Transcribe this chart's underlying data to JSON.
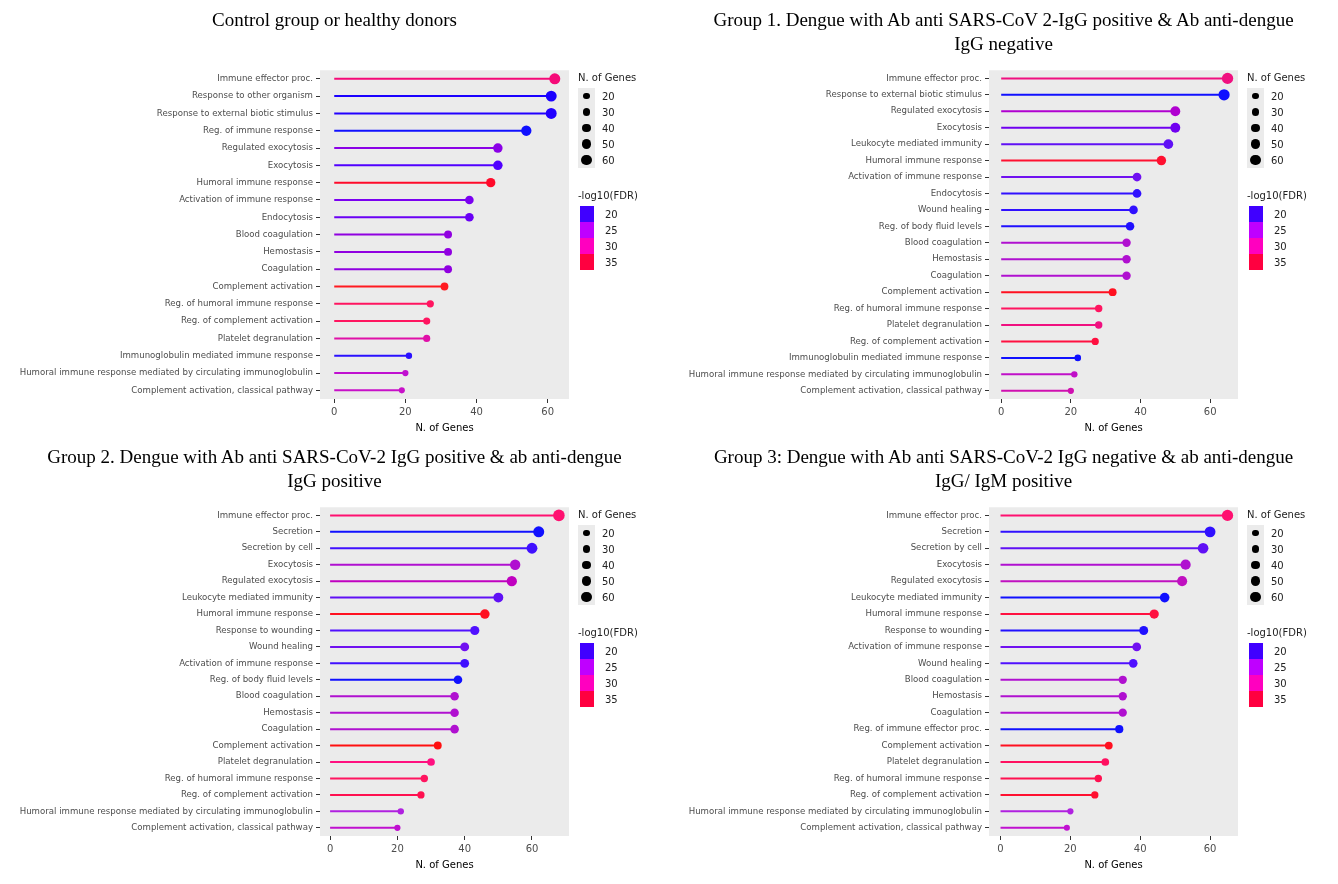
{
  "chart_data": [
    {
      "type": "lollipop",
      "orientation": "horizontal",
      "title": "Control group or healthy donors",
      "xlabel": "N. of Genes",
      "marker": "circle",
      "legend_title": "N. of Genes",
      "size_legend": [
        20,
        30,
        40,
        50,
        60
      ],
      "clabel": "-log10(FDR)",
      "clim": [
        17.5,
        37.5
      ],
      "cticks": [
        20,
        25,
        30,
        35
      ],
      "xlim": [
        -4,
        66
      ],
      "xticks": [
        0,
        20,
        40,
        60
      ],
      "categories": [
        "Immune effector proc.",
        "Response to other organism",
        "Response to external biotic stimulus",
        "Reg. of immune response",
        "Regulated exocytosis",
        "Exocytosis",
        "Humoral immune response",
        "Activation of immune response",
        "Endocytosis",
        "Blood coagulation",
        "Hemostasis",
        "Coagulation",
        "Complement activation",
        "Reg. of humoral immune response",
        "Reg. of complement activation",
        "Platelet degranulation",
        "Immunoglobulin mediated immune response",
        "Humoral immune response mediated by circulating immunoglobulin",
        "Complement activation, classical pathway"
      ],
      "values": [
        62,
        61,
        61,
        54,
        46,
        46,
        44,
        38,
        38,
        32,
        32,
        32,
        31,
        27,
        26,
        26,
        21,
        20,
        19
      ],
      "sizes": [
        62,
        61,
        61,
        54,
        46,
        46,
        44,
        38,
        38,
        32,
        32,
        32,
        31,
        27,
        26,
        26,
        21,
        20,
        19
      ],
      "colors": [
        "#f50a78",
        "#1a00ff",
        "#2200ff",
        "#1010ff",
        "#8a00e6",
        "#5000ff",
        "#ff0a2a",
        "#7a00f0",
        "#6a00f5",
        "#9000e0",
        "#9000e0",
        "#9000e0",
        "#ff1a20",
        "#ff1560",
        "#ff1560",
        "#e010a8",
        "#2a10ff",
        "#c010d0",
        "#c810c8"
      ]
    },
    {
      "type": "lollipop",
      "orientation": "horizontal",
      "title": "Group 1. Dengue with Ab anti SARS-CoV 2-IgG positive & Ab anti-dengue IgG negative",
      "xlabel": "N. of Genes",
      "marker": "circle",
      "legend_title": "N. of Genes",
      "size_legend": [
        20,
        30,
        40,
        50,
        60
      ],
      "clabel": "-log10(FDR)",
      "clim": [
        17.5,
        37.5
      ],
      "cticks": [
        20,
        25,
        30,
        35
      ],
      "xlim": [
        -3.5,
        68
      ],
      "xticks": [
        0,
        20,
        40,
        60
      ],
      "categories": [
        "Immune effector proc.",
        "Response to external biotic stimulus",
        "Regulated exocytosis",
        "Exocytosis",
        "Leukocyte mediated immunity",
        "Humoral immune response",
        "Activation of immune response",
        "Endocytosis",
        "Wound healing",
        "Reg. of body fluid levels",
        "Blood coagulation",
        "Hemostasis",
        "Coagulation",
        "Complement activation",
        "Reg. of humoral immune response",
        "Platelet degranulation",
        "Reg. of complement activation",
        "Immunoglobulin mediated immune response",
        "Humoral immune response mediated by circulating immunoglobulin",
        "Complement activation, classical pathway"
      ],
      "values": [
        65,
        64,
        50,
        50,
        48,
        46,
        39,
        39,
        38,
        37,
        36,
        36,
        36,
        32,
        28,
        28,
        27,
        22,
        21,
        20
      ],
      "sizes": [
        65,
        64,
        50,
        50,
        48,
        46,
        39,
        39,
        38,
        37,
        36,
        36,
        36,
        32,
        28,
        28,
        27,
        22,
        21,
        20
      ],
      "colors": [
        "#f01080",
        "#1010ff",
        "#b000d0",
        "#7000f0",
        "#6010f5",
        "#ff1030",
        "#7010f0",
        "#3010ff",
        "#3010ff",
        "#2010ff",
        "#b010d0",
        "#b010d0",
        "#b010d0",
        "#ff1020",
        "#ff1560",
        "#f01080",
        "#ff1040",
        "#1010ff",
        "#c010c8",
        "#d010b0"
      ]
    },
    {
      "type": "lollipop",
      "orientation": "horizontal",
      "title": "Group 2. Dengue with Ab anti SARS-CoV-2 IgG positive & ab anti-dengue IgG positive",
      "xlabel": "N. of Genes",
      "marker": "circle",
      "legend_title": "N. of Genes",
      "size_legend": [
        20,
        30,
        40,
        50,
        60
      ],
      "clabel": "-log10(FDR)",
      "clim": [
        17.5,
        37.5
      ],
      "cticks": [
        20,
        25,
        30,
        35
      ],
      "xlim": [
        -3,
        71
      ],
      "xticks": [
        0,
        20,
        40,
        60
      ],
      "categories": [
        "Immune effector proc.",
        "Secretion",
        "Secretion by cell",
        "Exocytosis",
        "Regulated exocytosis",
        "Leukocyte mediated immunity",
        "Humoral immune response",
        "Response to wounding",
        "Wound healing",
        "Activation of immune response",
        "Reg. of body fluid levels",
        "Blood coagulation",
        "Hemostasis",
        "Coagulation",
        "Complement activation",
        "Platelet degranulation",
        "Reg. of humoral immune response",
        "Reg. of complement activation",
        "Humoral immune response mediated by circulating immunoglobulin",
        "Complement activation, classical pathway"
      ],
      "values": [
        68,
        62,
        60,
        55,
        54,
        50,
        46,
        43,
        40,
        40,
        38,
        37,
        37,
        37,
        32,
        30,
        28,
        27,
        21,
        20
      ],
      "sizes": [
        68,
        62,
        60,
        55,
        54,
        50,
        46,
        43,
        40,
        40,
        38,
        37,
        37,
        37,
        32,
        30,
        28,
        27,
        21,
        20
      ],
      "colors": [
        "#ff1070",
        "#1010ff",
        "#4010ff",
        "#b010d0",
        "#c000c0",
        "#6010f5",
        "#ff1020",
        "#5010ff",
        "#7010f0",
        "#4010ff",
        "#1010ff",
        "#b010d0",
        "#b010d0",
        "#b010d0",
        "#ff1010",
        "#ff1080",
        "#ff1560",
        "#ff1050",
        "#b020e0",
        "#c010d0"
      ]
    },
    {
      "type": "lollipop",
      "orientation": "horizontal",
      "title": "Group 3: Dengue with Ab anti SARS-CoV-2 IgG negative & ab anti-dengue IgG/ IgM positive",
      "xlabel": "N. of Genes",
      "marker": "circle",
      "legend_title": "N. of Genes",
      "size_legend": [
        20,
        30,
        40,
        50,
        60
      ],
      "clabel": "-log10(FDR)",
      "clim": [
        17.5,
        37.5
      ],
      "cticks": [
        20,
        25,
        30,
        35
      ],
      "xlim": [
        -3.3,
        68
      ],
      "xticks": [
        0,
        20,
        40,
        60
      ],
      "categories": [
        "Immune effector proc.",
        "Secretion",
        "Secretion by cell",
        "Exocytosis",
        "Regulated exocytosis",
        "Leukocyte mediated immunity",
        "Humoral immune response",
        "Response to wounding",
        "Activation of immune response",
        "Wound healing",
        "Blood coagulation",
        "Hemostasis",
        "Coagulation",
        "Reg. of immune effector proc.",
        "Complement activation",
        "Platelet degranulation",
        "Reg. of humoral immune response",
        "Reg. of complement activation",
        "Humoral immune response mediated by circulating immunoglobulin",
        "Complement activation, classical pathway"
      ],
      "values": [
        65,
        60,
        58,
        53,
        52,
        47,
        44,
        41,
        39,
        38,
        35,
        35,
        35,
        34,
        31,
        30,
        28,
        27,
        20,
        19
      ],
      "sizes": [
        65,
        60,
        58,
        53,
        52,
        47,
        44,
        41,
        39,
        38,
        35,
        35,
        35,
        34,
        31,
        30,
        28,
        27,
        20,
        19
      ],
      "colors": [
        "#ff1070",
        "#3010ff",
        "#6010f5",
        "#b010d0",
        "#c010c0",
        "#1010ff",
        "#ff1040",
        "#2010ff",
        "#7010f0",
        "#5010ff",
        "#b010d0",
        "#b010d0",
        "#b010d0",
        "#1010ff",
        "#ff1020",
        "#ff1060",
        "#ff1050",
        "#ff1030",
        "#b020e0",
        "#c010d0"
      ]
    }
  ]
}
